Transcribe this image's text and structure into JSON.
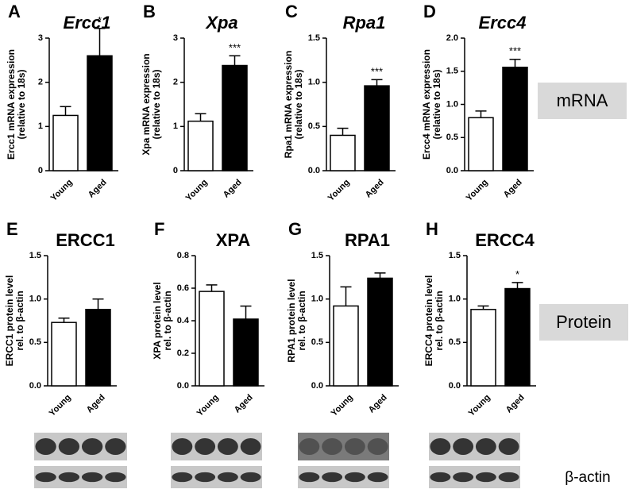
{
  "chart_data": [
    {
      "type": "bar",
      "panel": "A",
      "title": "Ercc1",
      "ylabel": [
        "Ercc1 mRNA expression",
        "(relative to 18s)"
      ],
      "categories": [
        "Young",
        "Aged"
      ],
      "values": [
        1.25,
        2.6
      ],
      "errors": [
        0.2,
        0.62
      ],
      "colors": [
        "#ffffff",
        "#000000"
      ],
      "annotation": "*",
      "ylim": [
        0,
        3
      ],
      "yticks": [
        0,
        1,
        2,
        3
      ]
    },
    {
      "type": "bar",
      "panel": "B",
      "title": "Xpa",
      "ylabel": [
        "Xpa mRNA expression",
        "(relative to 18s)"
      ],
      "categories": [
        "Young",
        "Aged"
      ],
      "values": [
        1.12,
        2.38
      ],
      "errors": [
        0.17,
        0.22
      ],
      "colors": [
        "#ffffff",
        "#000000"
      ],
      "annotation": "***",
      "ylim": [
        0,
        3
      ],
      "yticks": [
        0,
        1,
        2,
        3
      ]
    },
    {
      "type": "bar",
      "panel": "C",
      "title": "Rpa1",
      "ylabel": [
        "Rpa1 mRNA expression",
        "(relative to 18s)"
      ],
      "categories": [
        "Young",
        "Aged"
      ],
      "values": [
        0.4,
        0.96
      ],
      "errors": [
        0.08,
        0.07
      ],
      "colors": [
        "#ffffff",
        "#000000"
      ],
      "annotation": "***",
      "ylim": [
        0,
        1.5
      ],
      "yticks": [
        {
          "value": 0,
          "label": "0.0"
        },
        0.5,
        {
          "value": 1,
          "label": "1.0"
        },
        1.5
      ]
    },
    {
      "type": "bar",
      "panel": "D",
      "title": "Ercc4",
      "ylabel": [
        "Ercc4 mRNA expression",
        "(relative to 18s)"
      ],
      "categories": [
        "Young",
        "Aged"
      ],
      "values": [
        0.8,
        1.56
      ],
      "errors": [
        0.1,
        0.12
      ],
      "colors": [
        "#ffffff",
        "#000000"
      ],
      "annotation": "***",
      "ylim": [
        0,
        2
      ],
      "yticks": [
        {
          "value": 0,
          "label": "0.0"
        },
        0.5,
        {
          "value": 1,
          "label": "1.0"
        },
        1.5,
        {
          "value": 2,
          "label": "2.0"
        }
      ]
    },
    {
      "type": "bar",
      "panel": "E",
      "title": "ERCC1",
      "ylabel": [
        "ERCC1 protein level",
        "rel. to β-actin"
      ],
      "categories": [
        "Young",
        "Aged"
      ],
      "values": [
        0.73,
        0.88
      ],
      "errors": [
        0.05,
        0.12
      ],
      "colors": [
        "#ffffff",
        "#000000"
      ],
      "ylim": [
        0,
        1.5
      ],
      "yticks": [
        {
          "value": 0,
          "label": "0.0"
        },
        0.5,
        {
          "value": 1,
          "label": "1.0"
        },
        1.5
      ]
    },
    {
      "type": "bar",
      "panel": "F",
      "title": "XPA",
      "ylabel": [
        "XPA protein level",
        "rel. to β-actin"
      ],
      "categories": [
        "Young",
        "Aged"
      ],
      "values": [
        0.58,
        0.41
      ],
      "errors": [
        0.04,
        0.08
      ],
      "colors": [
        "#ffffff",
        "#000000"
      ],
      "ylim": [
        0,
        0.8
      ],
      "yticks": [
        {
          "value": 0,
          "label": "0.0"
        },
        0.2,
        0.4,
        0.6,
        0.8
      ]
    },
    {
      "type": "bar",
      "panel": "G",
      "title": "RPA1",
      "ylabel": [
        "RPA1 protein level",
        "rel. to β-actin"
      ],
      "categories": [
        "Young",
        "Aged"
      ],
      "values": [
        0.92,
        1.24
      ],
      "errors": [
        0.22,
        0.06
      ],
      "colors": [
        "#ffffff",
        "#000000"
      ],
      "ylim": [
        0,
        1.5
      ],
      "yticks": [
        {
          "value": 0,
          "label": "0.0"
        },
        0.5,
        {
          "value": 1,
          "label": "1.0"
        },
        1.5
      ]
    },
    {
      "type": "bar",
      "panel": "H",
      "title": "ERCC4",
      "ylabel": [
        "ERCC4 protein level",
        "rel. to β-actin"
      ],
      "categories": [
        "Young",
        "Aged"
      ],
      "values": [
        0.88,
        1.12
      ],
      "errors": [
        0.04,
        0.07
      ],
      "colors": [
        "#ffffff",
        "#000000"
      ],
      "annotation": "*",
      "ylim": [
        0,
        1.5
      ],
      "yticks": [
        {
          "value": 0,
          "label": "0.0"
        },
        0.5,
        {
          "value": 1,
          "label": "1.0"
        },
        1.5
      ]
    }
  ],
  "row_labels": [
    "mRNA",
    "Protein"
  ],
  "blot_label": "β-actin"
}
